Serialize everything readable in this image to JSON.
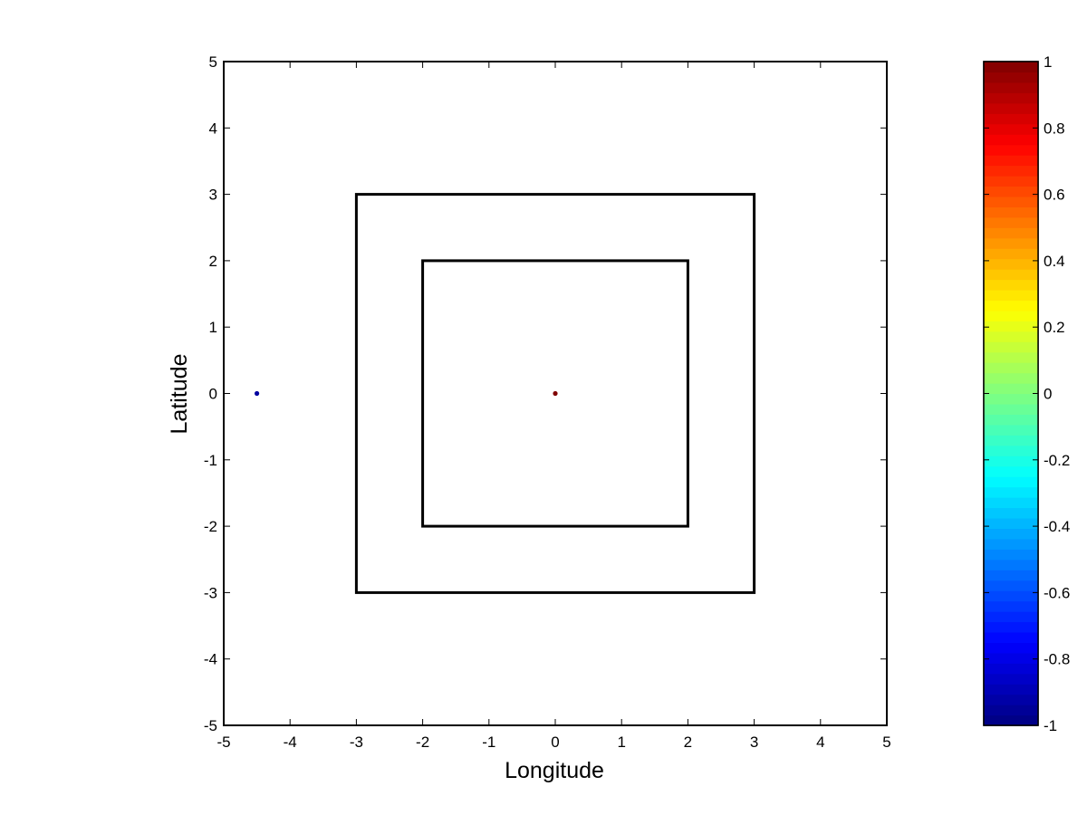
{
  "chart_data": {
    "type": "scatter",
    "title": "",
    "xlabel": "Longitude",
    "ylabel": "Latitude",
    "xlim": [
      -5,
      5
    ],
    "ylim": [
      -5,
      5
    ],
    "xticks": [
      -5,
      -4,
      -3,
      -2,
      -1,
      0,
      1,
      2,
      3,
      4,
      5
    ],
    "yticks": [
      -5,
      -4,
      -3,
      -2,
      -1,
      0,
      1,
      2,
      3,
      4,
      5
    ],
    "grid": false,
    "colormap": "jet",
    "series": [
      {
        "points": [
          {
            "x": -4.5,
            "y": 0,
            "value": -1,
            "color": "#0000a0"
          },
          {
            "x": 0,
            "y": 0,
            "value": 1,
            "color": "#800000"
          }
        ]
      }
    ],
    "rectangles": [
      {
        "x": [
          -3,
          3
        ],
        "y": [
          -3,
          3
        ],
        "color": "#000000"
      },
      {
        "x": [
          -2,
          2
        ],
        "y": [
          -2,
          2
        ],
        "color": "#000000"
      }
    ],
    "colorbar": {
      "range": [
        -1,
        1
      ],
      "ticks": [
        1,
        0.8,
        0.6,
        0.4,
        0.2,
        0,
        -0.2,
        -0.4,
        -0.6,
        -0.8,
        -1
      ]
    }
  }
}
